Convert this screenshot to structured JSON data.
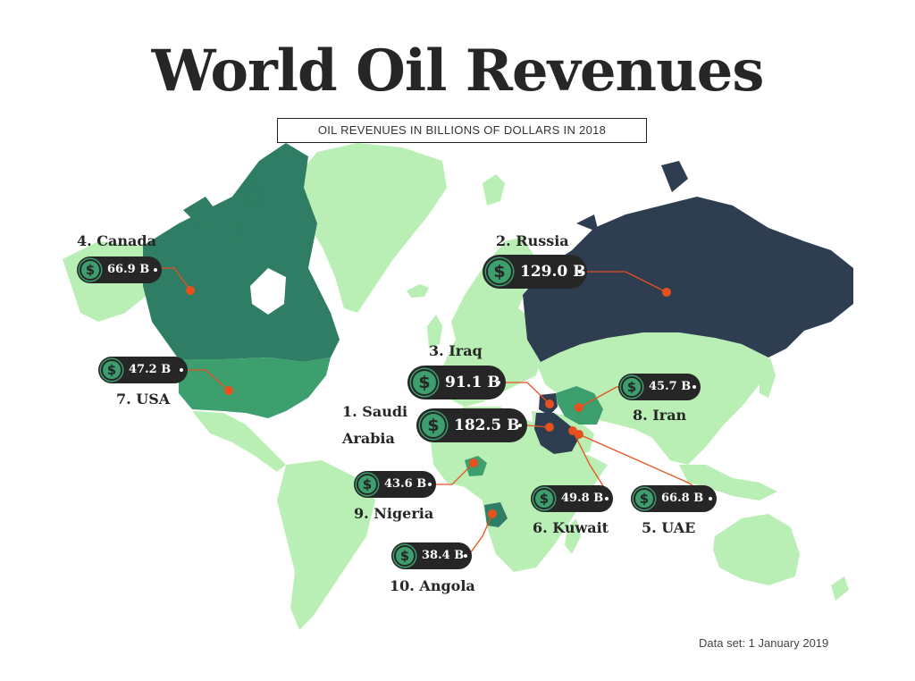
{
  "title": "World Oil Revenues",
  "subtitle": "OIL REVENUES IN BILLIONS OF DOLLARS IN 2018",
  "footnote": "Data set: 1 January 2019",
  "icon": "dollar-coin-icon",
  "colors": {
    "land": "#b9efb4",
    "dark_navy": "#2e3d4f",
    "dark_green": "#2f7d64",
    "mid_green": "#3d9e6e",
    "callout_line": "#e8501e",
    "pill": "#262626"
  },
  "countries": [
    {
      "rank": "1.",
      "name": "Saudi Arabia",
      "name_line1": "1. Saudi",
      "name_line2": "Arabia",
      "value": "182.5 B"
    },
    {
      "rank": "2.",
      "name": "Russia",
      "label": "2. Russia",
      "value": "129.0 B"
    },
    {
      "rank": "3.",
      "name": "Iraq",
      "label": "3. Iraq",
      "value": "91.1 B"
    },
    {
      "rank": "4.",
      "name": "Canada",
      "label": "4. Canada",
      "value": "66.9 B"
    },
    {
      "rank": "5.",
      "name": "UAE",
      "label": "5. UAE",
      "value": "66.8 B"
    },
    {
      "rank": "6.",
      "name": "Kuwait",
      "label": "6. Kuwait",
      "value": "49.8 B"
    },
    {
      "rank": "7.",
      "name": "USA",
      "label": "7. USA",
      "value": "47.2 B"
    },
    {
      "rank": "8.",
      "name": "Iran",
      "label": "8. Iran",
      "value": "45.7 B"
    },
    {
      "rank": "9.",
      "name": "Nigeria",
      "label": "9. Nigeria",
      "value": "43.6 B"
    },
    {
      "rank": "10.",
      "name": "Angola",
      "label": "10. Angola",
      "value": "38.4 B"
    }
  ]
}
